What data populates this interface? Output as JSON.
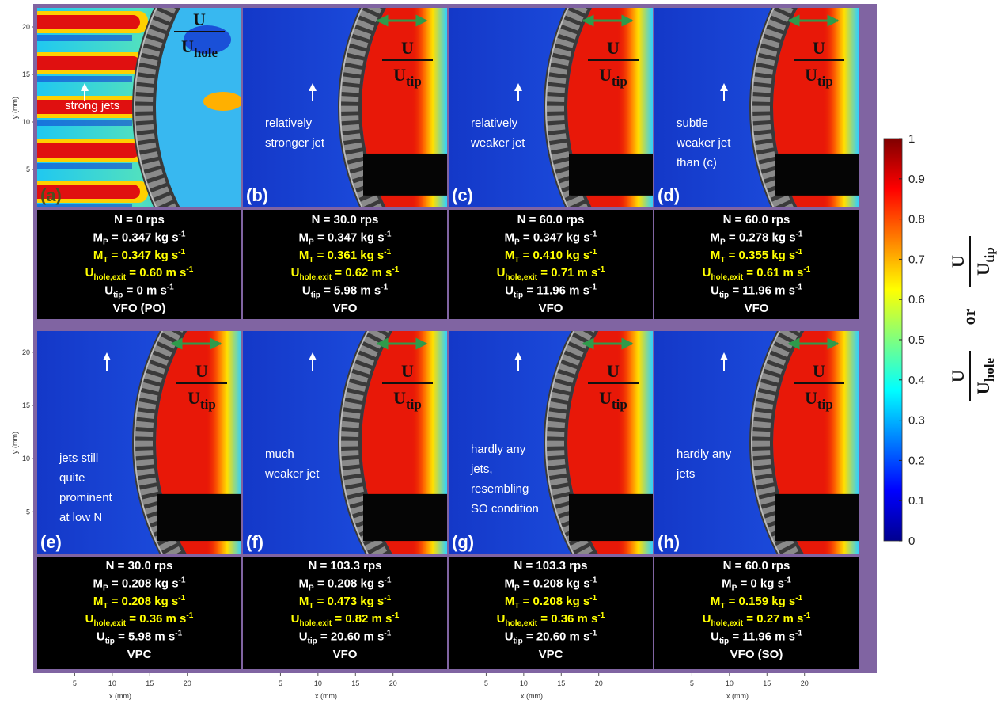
{
  "panels": [
    {
      "label": "(a)",
      "annotation": [
        "strong jets"
      ],
      "fraction": {
        "num": "U",
        "den": "U",
        "den_sub": "hole"
      },
      "info": [
        [
          "N = 0 rps"
        ],
        [
          "M",
          "P",
          " = 0.347 kg s",
          "-1"
        ],
        [
          "M",
          "T",
          " = 0.347 kg s",
          "-1"
        ],
        [
          "U",
          "hole,exit",
          " = 0.60 m s",
          "-1"
        ],
        [
          "U",
          "tip",
          " =  0 m s",
          "-1"
        ],
        [
          "VFO (PO)"
        ]
      ]
    },
    {
      "label": "(b)",
      "annotation": [
        "relatively",
        "stronger jet"
      ],
      "fraction": {
        "num": "U",
        "den": "U",
        "den_sub": "tip"
      },
      "info": [
        [
          "N = 30.0 rps"
        ],
        [
          "M",
          "P",
          " = 0.347 kg s",
          "-1"
        ],
        [
          "M",
          "T",
          " = 0.361 kg s",
          "-1"
        ],
        [
          "U",
          "hole,exit",
          " = 0.62 m s",
          "-1"
        ],
        [
          "U",
          "tip",
          " =  5.98 m s",
          "-1"
        ],
        [
          "VFO"
        ]
      ]
    },
    {
      "label": "(c)",
      "annotation": [
        "relatively",
        "weaker jet"
      ],
      "fraction": {
        "num": "U",
        "den": "U",
        "den_sub": "tip"
      },
      "info": [
        [
          "N = 60.0 rps"
        ],
        [
          "M",
          "P",
          " = 0.347 kg s",
          "-1"
        ],
        [
          "M",
          "T",
          " = 0.410 kg s",
          "-1"
        ],
        [
          "U",
          "hole,exit",
          " = 0.71 m s",
          "-1"
        ],
        [
          "U",
          "tip",
          " =  11.96 m s",
          "-1"
        ],
        [
          "VFO"
        ]
      ]
    },
    {
      "label": "(d)",
      "annotation": [
        "subtle",
        "weaker jet",
        "than (c)"
      ],
      "fraction": {
        "num": "U",
        "den": "U",
        "den_sub": "tip"
      },
      "info": [
        [
          "N = 60.0 rps"
        ],
        [
          "M",
          "P",
          " = 0.278 kg s",
          "-1"
        ],
        [
          "M",
          "T",
          " = 0.355 kg s",
          "-1"
        ],
        [
          "U",
          "hole,exit",
          " = 0.61 m s",
          "-1"
        ],
        [
          "U",
          "tip",
          " =  11.96 m s",
          "-1"
        ],
        [
          "VFO"
        ]
      ]
    },
    {
      "label": "(e)",
      "annotation": [
        "jets still",
        "quite",
        "prominent",
        "at low N"
      ],
      "fraction": {
        "num": "U",
        "den": "U",
        "den_sub": "tip"
      },
      "info": [
        [
          "N = 30.0 rps"
        ],
        [
          "M",
          "P",
          " = 0.208 kg s",
          "-1"
        ],
        [
          "M",
          "T",
          " = 0.208 kg s",
          "-1"
        ],
        [
          "U",
          "hole,exit",
          " = 0.36 m s",
          "-1"
        ],
        [
          "U",
          "tip",
          " = 5.98 m s",
          "-1"
        ],
        [
          "VPC"
        ]
      ]
    },
    {
      "label": "(f)",
      "annotation": [
        "much",
        "weaker jet"
      ],
      "fraction": {
        "num": "U",
        "den": "U",
        "den_sub": "tip"
      },
      "info": [
        [
          "N = 103.3 rps"
        ],
        [
          "M",
          "P",
          " = 0.208 kg s",
          "-1"
        ],
        [
          "M",
          "T",
          " = 0.473 kg s",
          "-1"
        ],
        [
          "U",
          "hole,exit",
          " = 0.82 m s",
          "-1"
        ],
        [
          "U",
          "tip",
          " = 20.60 m s",
          "-1"
        ],
        [
          "VFO"
        ]
      ]
    },
    {
      "label": "(g)",
      "annotation": [
        "hardly any",
        "jets,",
        "resembling",
        "SO condition"
      ],
      "fraction": {
        "num": "U",
        "den": "U",
        "den_sub": "tip"
      },
      "info": [
        [
          "N = 103.3 rps"
        ],
        [
          "M",
          "P",
          " = 0.208 kg s",
          "-1"
        ],
        [
          "M",
          "T",
          " = 0.208 kg s",
          "-1"
        ],
        [
          "U",
          "hole,exit",
          " = 0.36 m s",
          "-1"
        ],
        [
          "U",
          "tip",
          " =  20.60 m s",
          "-1"
        ],
        [
          "VPC"
        ]
      ]
    },
    {
      "label": "(h)",
      "annotation": [
        "hardly any",
        "jets"
      ],
      "fraction": {
        "num": "U",
        "den": "U",
        "den_sub": "tip"
      },
      "info": [
        [
          "N = 60.0 rps"
        ],
        [
          "M",
          "P",
          " = 0 kg s",
          "-1"
        ],
        [
          "M",
          "T",
          " = 0.159 kg s",
          "-1"
        ],
        [
          "U",
          "hole,exit",
          " = 0.27 m s",
          "-1"
        ],
        [
          "U",
          "tip",
          " =  11.96 m s",
          "-1"
        ],
        [
          "VFO (SO)"
        ]
      ]
    }
  ],
  "info_colors": [
    "#ffffff",
    "#ffffff",
    "#ffff00",
    "#ffff00",
    "#ffffff",
    "#ffffff"
  ],
  "axes": {
    "y_label": "y (mm)",
    "x_label": "x (mm)",
    "xticks": [
      5,
      10,
      15,
      20
    ],
    "yticks": [
      5,
      10,
      15,
      20
    ],
    "xlim": [
      0,
      27.2
    ],
    "ylim": [
      1,
      22
    ]
  },
  "colorbar": {
    "lim": [
      0,
      1
    ],
    "ticks": [
      0,
      0.1,
      0.2,
      0.3,
      0.4,
      0.5,
      0.6,
      0.7,
      0.8,
      0.9,
      1
    ],
    "label": {
      "num1": "U",
      "den1": "U",
      "den1_sub": "hole",
      "or": "or",
      "num2": "U",
      "den2": "U",
      "den2_sub": "tip"
    }
  }
}
